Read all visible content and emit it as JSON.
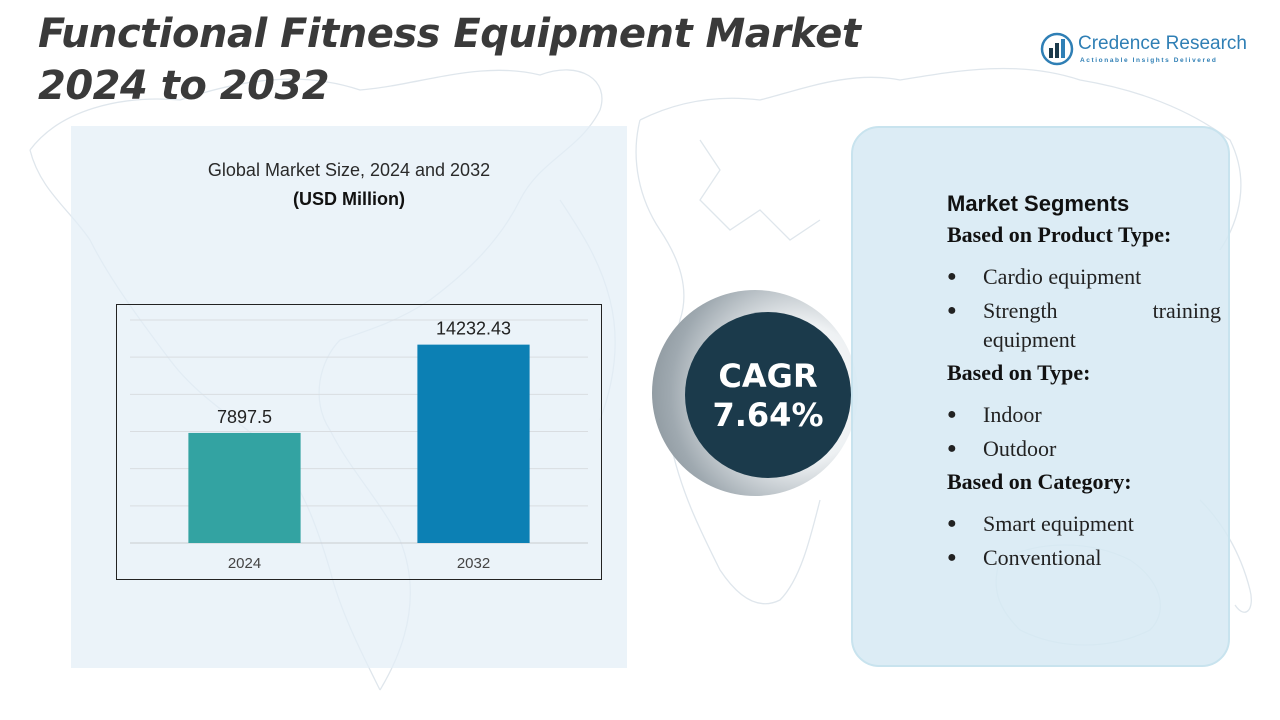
{
  "title": "Functional Fitness Equipment Market 2024 to 2032",
  "logo": {
    "name": "Credence Research",
    "tagline": "Actionable Insights Delivered",
    "icon": "bar-chart-icon"
  },
  "chart_panel": {
    "title": "Global Market Size, 2024 and 2032",
    "unit": "(USD Million)"
  },
  "chart_data": {
    "type": "bar",
    "categories": [
      "2024",
      "2032"
    ],
    "values": [
      7897.5,
      14232.43
    ],
    "value_labels": [
      "7897.5",
      "14232.43"
    ],
    "colors": [
      "#33a3a2",
      "#0c80b4"
    ],
    "ylim": [
      0,
      16000
    ],
    "grid": true,
    "legend": "none"
  },
  "cagr": {
    "label": "CAGR",
    "value": "7.64%"
  },
  "segments": {
    "heading": "Market Segments",
    "groups": [
      {
        "title": "Based on Product Type:",
        "items": [
          "Cardio equipment",
          "Strength training equipment"
        ]
      },
      {
        "title": "Based on Type:",
        "items": [
          "Indoor",
          "Outdoor"
        ]
      },
      {
        "title": "Based on Category:",
        "items": [
          "Smart equipment",
          "Conventional"
        ]
      }
    ],
    "bullet": "●"
  },
  "colors": {
    "title": "#3a3a3a",
    "brand": "#2f7fb5",
    "cagr_circle": "#1b3a4b",
    "panel": "#e3eef7",
    "segment_panel": "#d6e9f3"
  }
}
